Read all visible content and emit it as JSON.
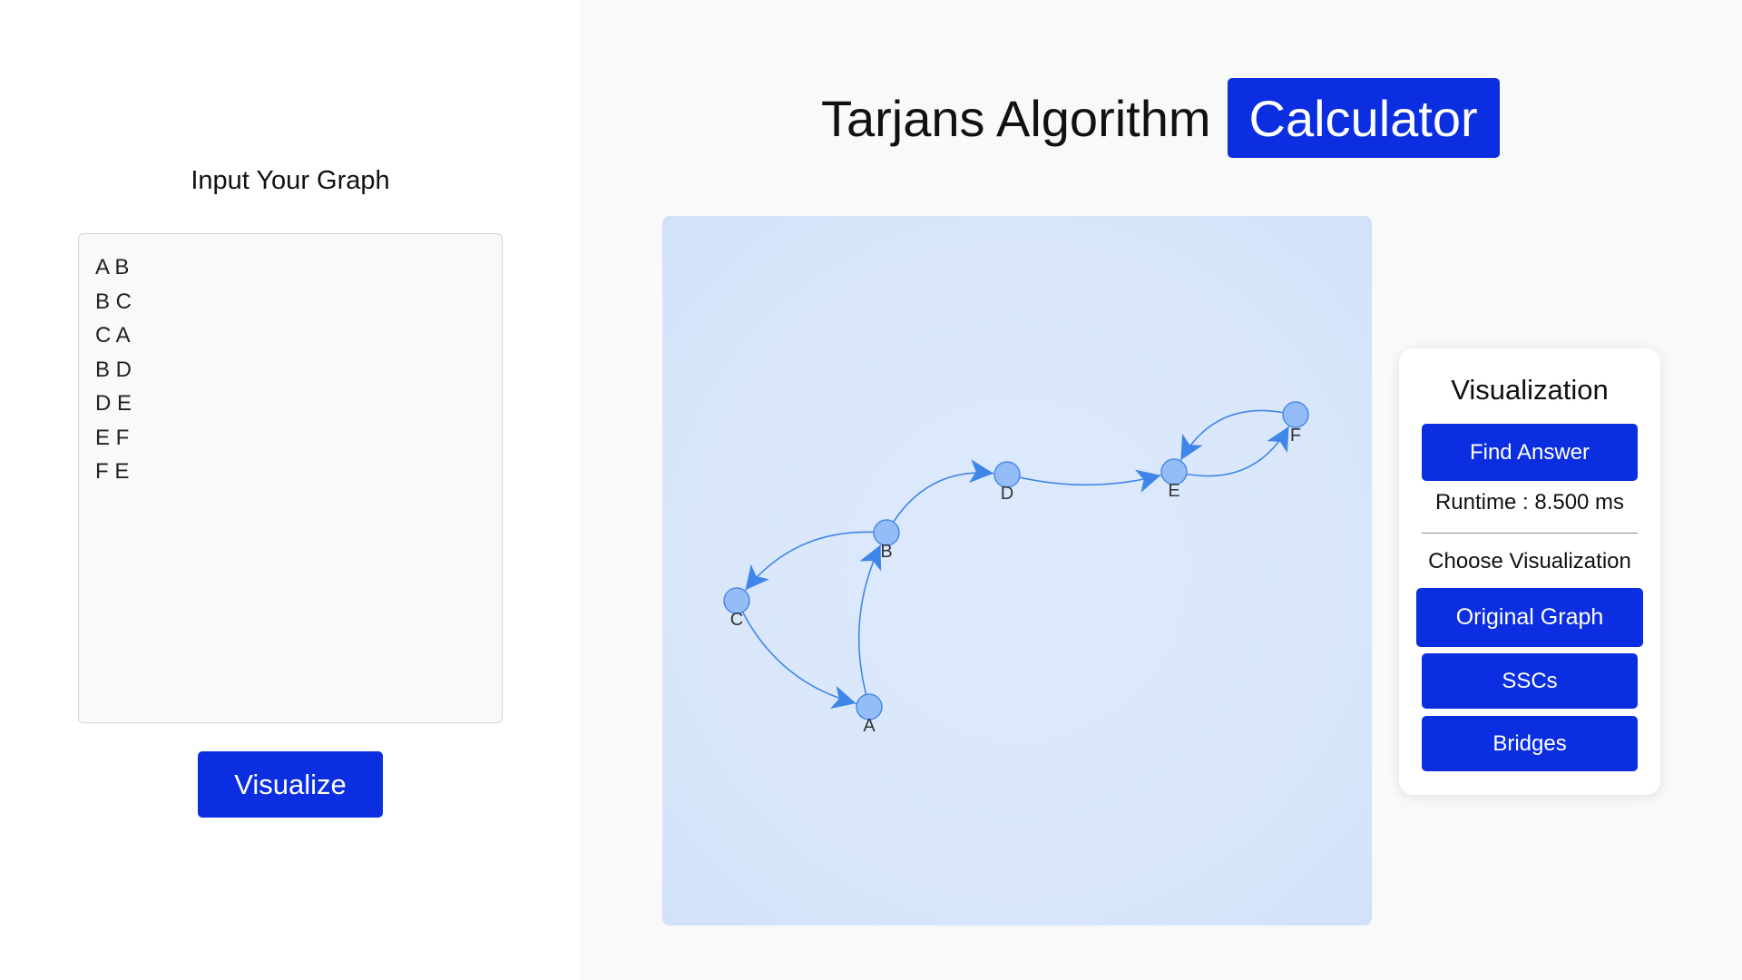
{
  "input_panel": {
    "title": "Input Your Graph",
    "edges_text": "A B\nB C\nC A\nB D\nD E\nE F\nF E",
    "visualize_label": "Visualize"
  },
  "header": {
    "title": "Tarjans Algorithm",
    "badge": "Calculator"
  },
  "graph": {
    "nodes": [
      "A",
      "B",
      "C",
      "D",
      "E",
      "F"
    ],
    "edges": [
      [
        "A",
        "B"
      ],
      [
        "B",
        "C"
      ],
      [
        "C",
        "A"
      ],
      [
        "B",
        "D"
      ],
      [
        "D",
        "E"
      ],
      [
        "E",
        "F"
      ],
      [
        "F",
        "E"
      ]
    ],
    "colors": {
      "node_fill": "#94bdf8",
      "node_stroke": "#4a8ae8",
      "edge": "#3f86e8",
      "background": "#dae7fb"
    }
  },
  "visualization_panel": {
    "title": "Visualization",
    "find_answer_label": "Find Answer",
    "runtime": "Runtime : 8.500 ms",
    "choose_label": "Choose Visualization",
    "options": [
      "Original Graph",
      "SSCs",
      "Bridges"
    ]
  },
  "colors": {
    "accent": "#0b2ee0"
  }
}
